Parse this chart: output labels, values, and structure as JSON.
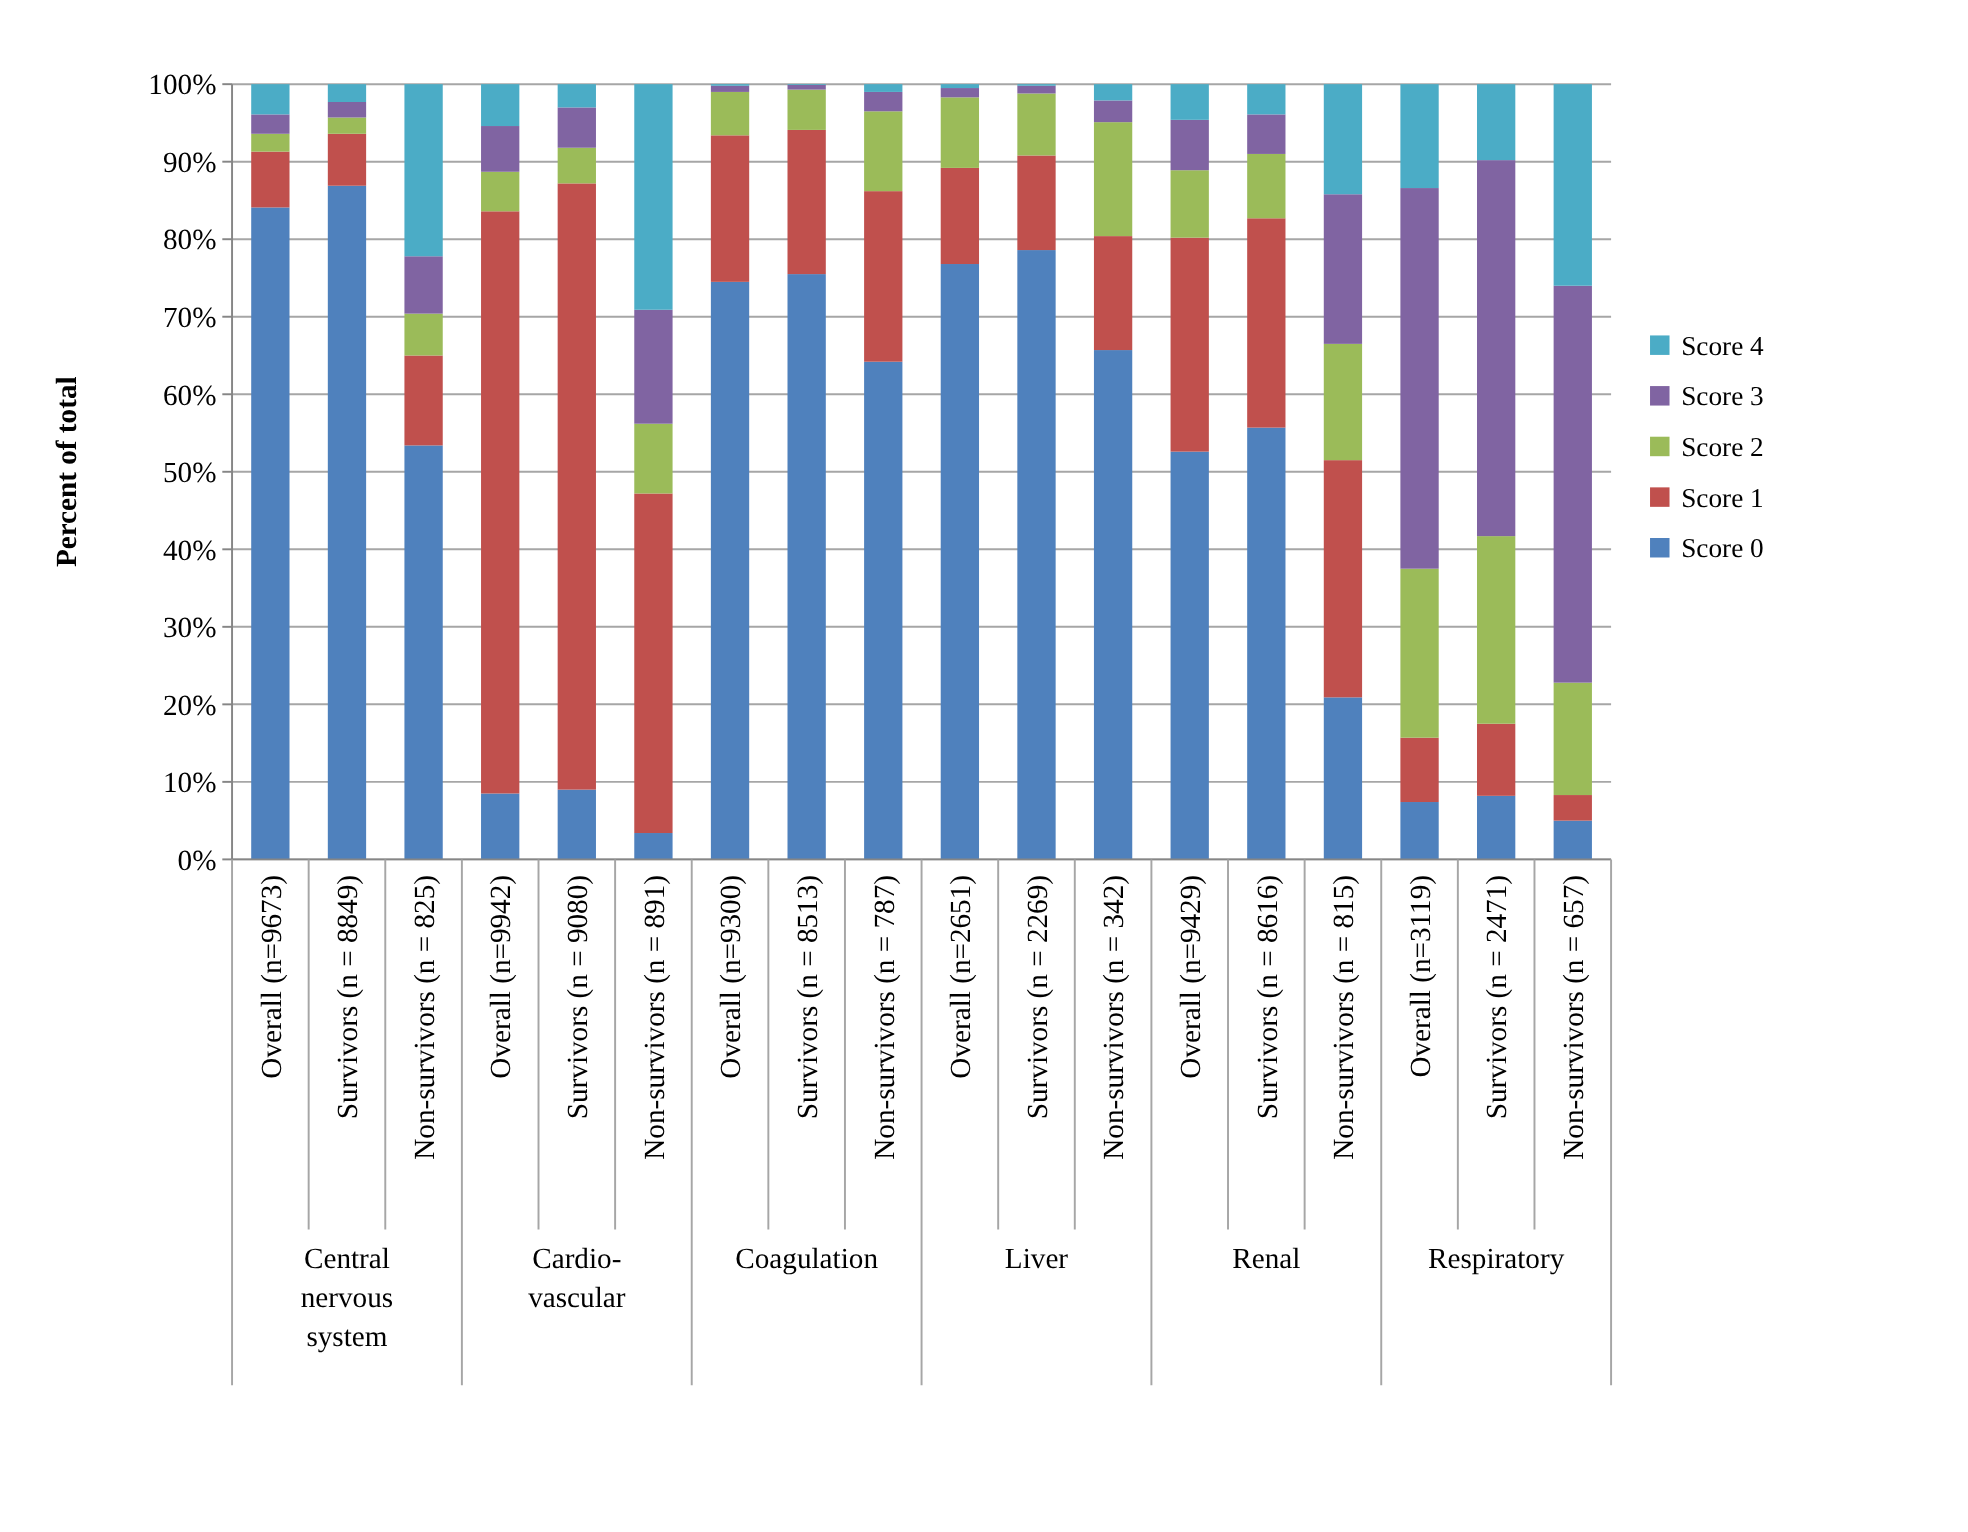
{
  "chart_data": {
    "type": "bar",
    "stacked": true,
    "ylabel": "Percent of total",
    "categories": [
      "Overall (n=9673)",
      "Survivors (n = 8849)",
      "Non-survivors (n = 825)",
      "Overall (n=9942)",
      "Survivors (n = 9080)",
      "Non-survivors (n = 891)",
      "Overall (n=9300)",
      "Survivors (n = 8513)",
      "Non-survivors (n = 787)",
      "Overall (n=2651)",
      "Survivors (n = 2269)",
      "Non-survivors (n = 342)",
      "Overall (n=9429)",
      "Survivors (n = 8616)",
      "Non-survivors (n = 815)",
      "Overall (n=3119)",
      "Survivors (n = 2471)",
      "Non-survivors (n = 657)"
    ],
    "annotations": [
      "Central nervous system",
      "Cardio-vascular",
      "Coagulation",
      "Liver",
      "Renal",
      "Respiratory"
    ],
    "series": [
      {
        "name": "Score 0",
        "color": "#4f81bd",
        "values": [
          84.1,
          86.9,
          53.4,
          8.5,
          9.0,
          3.4,
          74.5,
          75.5,
          64.2,
          76.8,
          78.6,
          65.7,
          52.6,
          55.7,
          20.9,
          7.4,
          8.2,
          5.0
        ]
      },
      {
        "name": "Score 1",
        "color": "#c0504d",
        "values": [
          7.2,
          6.7,
          11.6,
          75.1,
          78.2,
          43.8,
          18.9,
          18.6,
          22.0,
          12.4,
          12.2,
          14.7,
          27.6,
          27.0,
          30.6,
          8.3,
          9.3,
          3.3
        ]
      },
      {
        "name": "Score 2",
        "color": "#9bbb59",
        "values": [
          2.3,
          2.1,
          5.4,
          5.1,
          4.6,
          9.0,
          5.6,
          5.2,
          10.3,
          9.1,
          8.0,
          14.7,
          8.7,
          8.3,
          15.0,
          21.8,
          24.2,
          14.5
        ]
      },
      {
        "name": "Score 3",
        "color": "#8064a2",
        "values": [
          2.5,
          2.0,
          7.4,
          5.9,
          5.2,
          14.7,
          0.8,
          0.6,
          2.5,
          1.2,
          1.0,
          2.8,
          6.5,
          5.1,
          19.3,
          49.1,
          48.5,
          51.2
        ]
      },
      {
        "name": "Score 4",
        "color": "#4bacc6",
        "values": [
          3.9,
          2.3,
          22.2,
          5.4,
          3.0,
          29.1,
          0.2,
          0.1,
          1.0,
          0.5,
          0.2,
          2.1,
          4.6,
          3.9,
          14.2,
          13.4,
          9.8,
          26.0
        ]
      }
    ],
    "ylim": [
      0,
      100
    ],
    "yticks": [
      {
        "value": 0,
        "label": "0%"
      },
      {
        "value": 10,
        "label": "10%"
      },
      {
        "value": 20,
        "label": "20%"
      },
      {
        "value": 30,
        "label": "30%"
      },
      {
        "value": 40,
        "label": "40%"
      },
      {
        "value": 50,
        "label": "50%"
      },
      {
        "value": 60,
        "label": "60%"
      },
      {
        "value": 70,
        "label": "70%"
      },
      {
        "value": 80,
        "label": "80%"
      },
      {
        "value": 90,
        "label": "90%"
      },
      {
        "value": 100,
        "label": "100%"
      }
    ],
    "grid": "y",
    "legend": "right"
  }
}
